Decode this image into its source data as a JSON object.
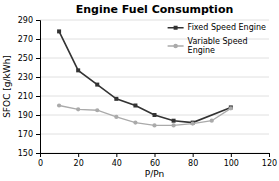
{
  "chart_data": {
    "type": "line",
    "title": "Engine Fuel Consumption",
    "xlabel": "P/Pn",
    "ylabel": "SFOC [g/kWh]",
    "xlim": [
      0,
      120
    ],
    "ylim": [
      150,
      290
    ],
    "xticks": [
      0,
      20,
      40,
      60,
      80,
      100,
      120
    ],
    "yticks": [
      150,
      170,
      190,
      210,
      230,
      250,
      270,
      290
    ],
    "grid": "y",
    "legend": "upper right",
    "series": [
      {
        "name": "Fixed Speed Engine",
        "color": "#333333",
        "marker": "square",
        "x": [
          10,
          20,
          30,
          40,
          50,
          60,
          70,
          80,
          100
        ],
        "values": [
          278,
          237,
          222,
          207,
          200,
          190,
          184,
          182,
          198
        ]
      },
      {
        "name": "Variable Speed\nEngine",
        "color": "#aaaaaa",
        "marker": "circle",
        "x": [
          10,
          20,
          30,
          40,
          50,
          60,
          70,
          80,
          90,
          100
        ],
        "values": [
          200,
          196,
          195,
          188,
          182,
          179,
          179,
          181,
          184,
          197
        ]
      }
    ]
  }
}
